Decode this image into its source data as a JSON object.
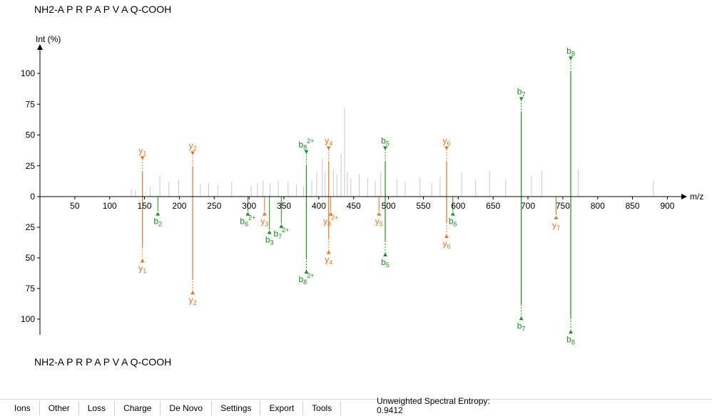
{
  "peptide": {
    "top": "NH2-A P R P A P V A Q-COOH",
    "bottom": "NH2-A P R P A P V A Q-COOH"
  },
  "toolbar": {
    "items": [
      "Ions",
      "Other",
      "Loss",
      "Charge",
      "De Novo",
      "Settings",
      "Export",
      "Tools"
    ]
  },
  "entropy": {
    "label": "Unweighted Spectral Entropy:",
    "value": "0.9412"
  },
  "colors": {
    "b_ion": "#1a8f1a",
    "y_ion": "#e8731a",
    "unannotated": "#c8c8c8",
    "axis": "#000000"
  },
  "chart_data": {
    "type": "bar",
    "xlabel": "m/z",
    "ylabel": "Int (%)",
    "xlim": [
      0,
      920
    ],
    "x_ticks": [
      50,
      100,
      150,
      200,
      250,
      300,
      350,
      400,
      450,
      500,
      550,
      600,
      650,
      700,
      750,
      800,
      850,
      900
    ],
    "y_ticks_top": [
      0,
      25,
      50,
      75,
      100
    ],
    "y_ticks_bottom": [
      25,
      50,
      75,
      100
    ],
    "ylim": [
      -100,
      100
    ],
    "experimental_peaks": {
      "annotated": [
        {
          "mz": 147.1,
          "intensity": 20,
          "ion": "y",
          "label": "y1",
          "match_mz": 147.1,
          "match_intensity": 41
        },
        {
          "mz": 219.1,
          "intensity": 24,
          "ion": "y",
          "label": "y2",
          "match_mz": 219.1,
          "match_intensity": 67
        },
        {
          "mz": 382.2,
          "intensity": 25,
          "ion": "b",
          "label": "b8 2+",
          "match_mz": 382.2,
          "match_intensity": 50
        },
        {
          "mz": 414.2,
          "intensity": 28,
          "ion": "y",
          "label": "y4",
          "match_mz": 414.2,
          "match_intensity": 34
        },
        {
          "mz": 495.3,
          "intensity": 28,
          "ion": "b",
          "label": "b5",
          "match_mz": 495.3,
          "match_intensity": 36
        },
        {
          "mz": 583.3,
          "intensity": 28,
          "ion": "y",
          "label": "y6",
          "match_mz": 583.3,
          "match_intensity": 21
        },
        {
          "mz": 690.4,
          "intensity": 68,
          "ion": "b",
          "label": "b7",
          "match_mz": 690.4,
          "match_intensity": 88
        },
        {
          "mz": 761.4,
          "intensity": 101,
          "ion": "b",
          "label": "b8",
          "match_mz": 761.4,
          "match_intensity": 99
        }
      ],
      "unannotated": [
        {
          "mz": 131,
          "intensity": 6
        },
        {
          "mz": 137,
          "intensity": 5
        },
        {
          "mz": 158,
          "intensity": 8
        },
        {
          "mz": 172,
          "intensity": 17
        },
        {
          "mz": 185,
          "intensity": 12
        },
        {
          "mz": 199,
          "intensity": 14
        },
        {
          "mz": 230,
          "intensity": 10
        },
        {
          "mz": 242,
          "intensity": 11
        },
        {
          "mz": 255,
          "intensity": 9
        },
        {
          "mz": 275,
          "intensity": 12
        },
        {
          "mz": 303,
          "intensity": 9
        },
        {
          "mz": 312,
          "intensity": 11
        },
        {
          "mz": 320,
          "intensity": 13
        },
        {
          "mz": 330,
          "intensity": 11
        },
        {
          "mz": 342,
          "intensity": 13
        },
        {
          "mz": 356,
          "intensity": 12
        },
        {
          "mz": 368,
          "intensity": 10
        },
        {
          "mz": 378,
          "intensity": 8
        },
        {
          "mz": 390,
          "intensity": 13
        },
        {
          "mz": 397,
          "intensity": 20
        },
        {
          "mz": 405,
          "intensity": 31
        },
        {
          "mz": 409,
          "intensity": 20
        },
        {
          "mz": 421,
          "intensity": 22
        },
        {
          "mz": 426,
          "intensity": 18
        },
        {
          "mz": 432,
          "intensity": 35
        },
        {
          "mz": 437,
          "intensity": 72
        },
        {
          "mz": 441,
          "intensity": 20
        },
        {
          "mz": 446,
          "intensity": 15
        },
        {
          "mz": 458,
          "intensity": 18
        },
        {
          "mz": 470,
          "intensity": 15
        },
        {
          "mz": 481,
          "intensity": 13
        },
        {
          "mz": 489,
          "intensity": 20
        },
        {
          "mz": 512,
          "intensity": 14
        },
        {
          "mz": 524,
          "intensity": 12
        },
        {
          "mz": 545,
          "intensity": 15
        },
        {
          "mz": 562,
          "intensity": 11
        },
        {
          "mz": 574,
          "intensity": 16
        },
        {
          "mz": 605,
          "intensity": 20
        },
        {
          "mz": 625,
          "intensity": 14
        },
        {
          "mz": 645,
          "intensity": 21
        },
        {
          "mz": 668,
          "intensity": 13
        },
        {
          "mz": 705,
          "intensity": 17
        },
        {
          "mz": 720,
          "intensity": 21
        },
        {
          "mz": 772,
          "intensity": 22
        },
        {
          "mz": 880,
          "intensity": 13
        }
      ]
    },
    "predicted_only": [
      {
        "mz": 169.1,
        "ion": "b",
        "label": "b2",
        "intensity": 12
      },
      {
        "mz": 298.2,
        "ion": "b",
        "label": "b6 2+",
        "intensity": 12
      },
      {
        "mz": 322.2,
        "ion": "y",
        "label": "y3",
        "intensity": 12
      },
      {
        "mz": 329.2,
        "ion": "b",
        "label": "b3",
        "intensity": 27
      },
      {
        "mz": 346.2,
        "ion": "b",
        "label": "b7 2+",
        "intensity": 22
      },
      {
        "mz": 417.2,
        "ion": "y",
        "label": "y8 2+",
        "intensity": 12
      },
      {
        "mz": 486.3,
        "ion": "y",
        "label": "y5",
        "intensity": 12
      },
      {
        "mz": 592.3,
        "ion": "b",
        "label": "b6",
        "intensity": 12
      },
      {
        "mz": 740.4,
        "ion": "y",
        "label": "y7",
        "intensity": 15
      }
    ]
  }
}
